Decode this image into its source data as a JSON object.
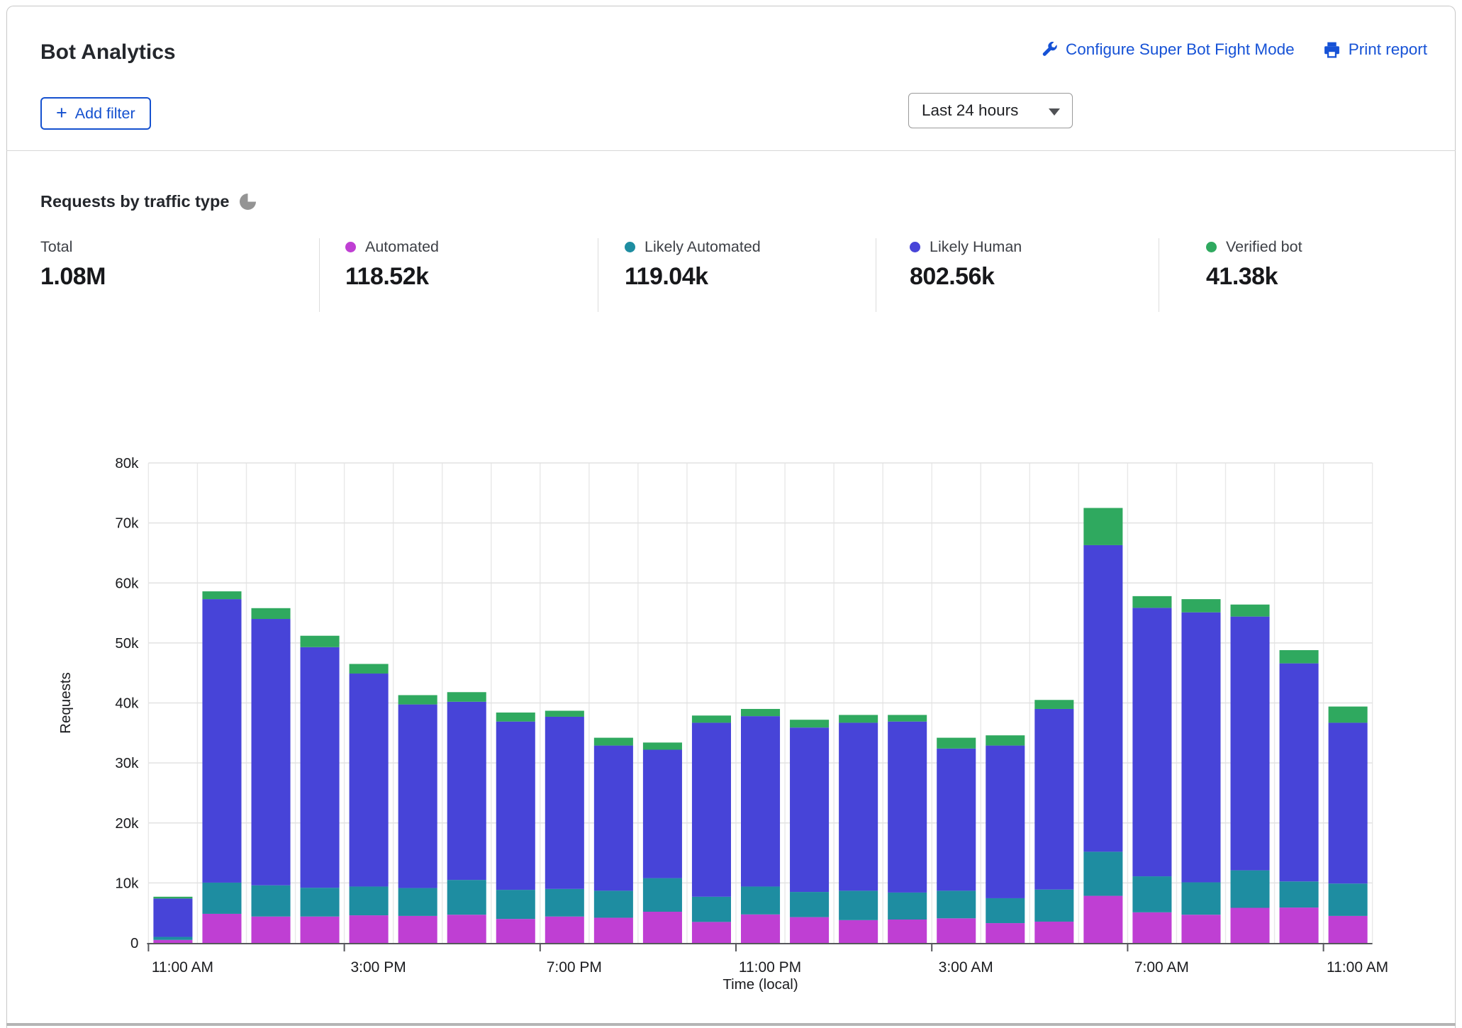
{
  "header": {
    "title": "Bot Analytics",
    "configure_link": "Configure Super Bot Fight Mode",
    "print_link": "Print report",
    "add_filter_label": "Add filter",
    "time_range_value": "Last 24 hours"
  },
  "section": {
    "title": "Requests by traffic type"
  },
  "stats": [
    {
      "label": "Total",
      "value": "1.08M",
      "color": null
    },
    {
      "label": "Automated",
      "value": "118.52k",
      "color": "#bf3fd3"
    },
    {
      "label": "Likely Automated",
      "value": "119.04k",
      "color": "#1e8da1"
    },
    {
      "label": "Likely Human",
      "value": "802.56k",
      "color": "#4744d8"
    },
    {
      "label": "Verified bot",
      "value": "41.38k",
      "color": "#2fa95f"
    }
  ],
  "chart_data": {
    "type": "bar",
    "stacked": true,
    "title": "Requests by traffic type",
    "xlabel": "Time (local)",
    "ylabel": "Requests",
    "ylim_k": [
      0,
      80
    ],
    "values_in": "thousands of requests",
    "grid": true,
    "legend_position": "stats row above chart",
    "ytick_labels": [
      "0",
      "10k",
      "20k",
      "30k",
      "40k",
      "50k",
      "60k",
      "70k",
      "80k"
    ],
    "xtick_labels": [
      "11:00 AM",
      "3:00 PM",
      "7:00 PM",
      "11:00 PM",
      "3:00 AM",
      "7:00 AM",
      "11:00 AM"
    ],
    "categories": [
      "11:00 AM",
      "12:00 PM",
      "1:00 PM",
      "2:00 PM",
      "3:00 PM",
      "4:00 PM",
      "5:00 PM",
      "6:00 PM",
      "7:00 PM",
      "8:00 PM",
      "9:00 PM",
      "10:00 PM",
      "11:00 PM",
      "12:00 AM",
      "1:00 AM",
      "2:00 AM",
      "3:00 AM",
      "4:00 AM",
      "5:00 AM",
      "6:00 AM",
      "7:00 AM",
      "8:00 AM",
      "9:00 AM",
      "10:00 AM",
      "11:00 AM"
    ],
    "series": [
      {
        "name": "Automated",
        "color": "#bf3fd3",
        "values": [
          0.5,
          4.85,
          4.4,
          4.4,
          4.6,
          4.5,
          4.7,
          4.0,
          4.4,
          4.2,
          5.2,
          3.5,
          4.75,
          4.3,
          3.8,
          3.9,
          4.1,
          3.3,
          3.55,
          7.85,
          5.1,
          4.7,
          5.85,
          5.9,
          4.5
        ]
      },
      {
        "name": "Likely Automated",
        "color": "#1e8da1",
        "values": [
          0.5,
          5.2,
          5.2,
          4.8,
          4.8,
          4.65,
          5.8,
          4.85,
          4.6,
          4.5,
          5.6,
          4.2,
          4.65,
          4.2,
          4.9,
          4.5,
          4.6,
          4.15,
          5.35,
          7.35,
          6.0,
          5.4,
          6.25,
          4.35,
          5.4
        ]
      },
      {
        "name": "Likely Human",
        "color": "#4744d8",
        "values": [
          6.4,
          47.25,
          44.4,
          40.1,
          35.5,
          30.6,
          29.7,
          28.05,
          28.7,
          24.2,
          21.4,
          29.0,
          28.4,
          27.4,
          28.0,
          28.5,
          23.7,
          25.45,
          30.1,
          51.1,
          44.75,
          45.0,
          42.3,
          36.35,
          26.8
        ]
      },
      {
        "name": "Verified bot",
        "color": "#2fa95f",
        "values": [
          0.3,
          1.3,
          1.8,
          1.9,
          1.6,
          1.55,
          1.6,
          1.5,
          1.0,
          1.3,
          1.2,
          1.2,
          1.2,
          1.3,
          1.3,
          1.1,
          1.8,
          1.7,
          1.5,
          6.2,
          1.95,
          2.2,
          2.0,
          2.2,
          2.7
        ]
      }
    ]
  }
}
